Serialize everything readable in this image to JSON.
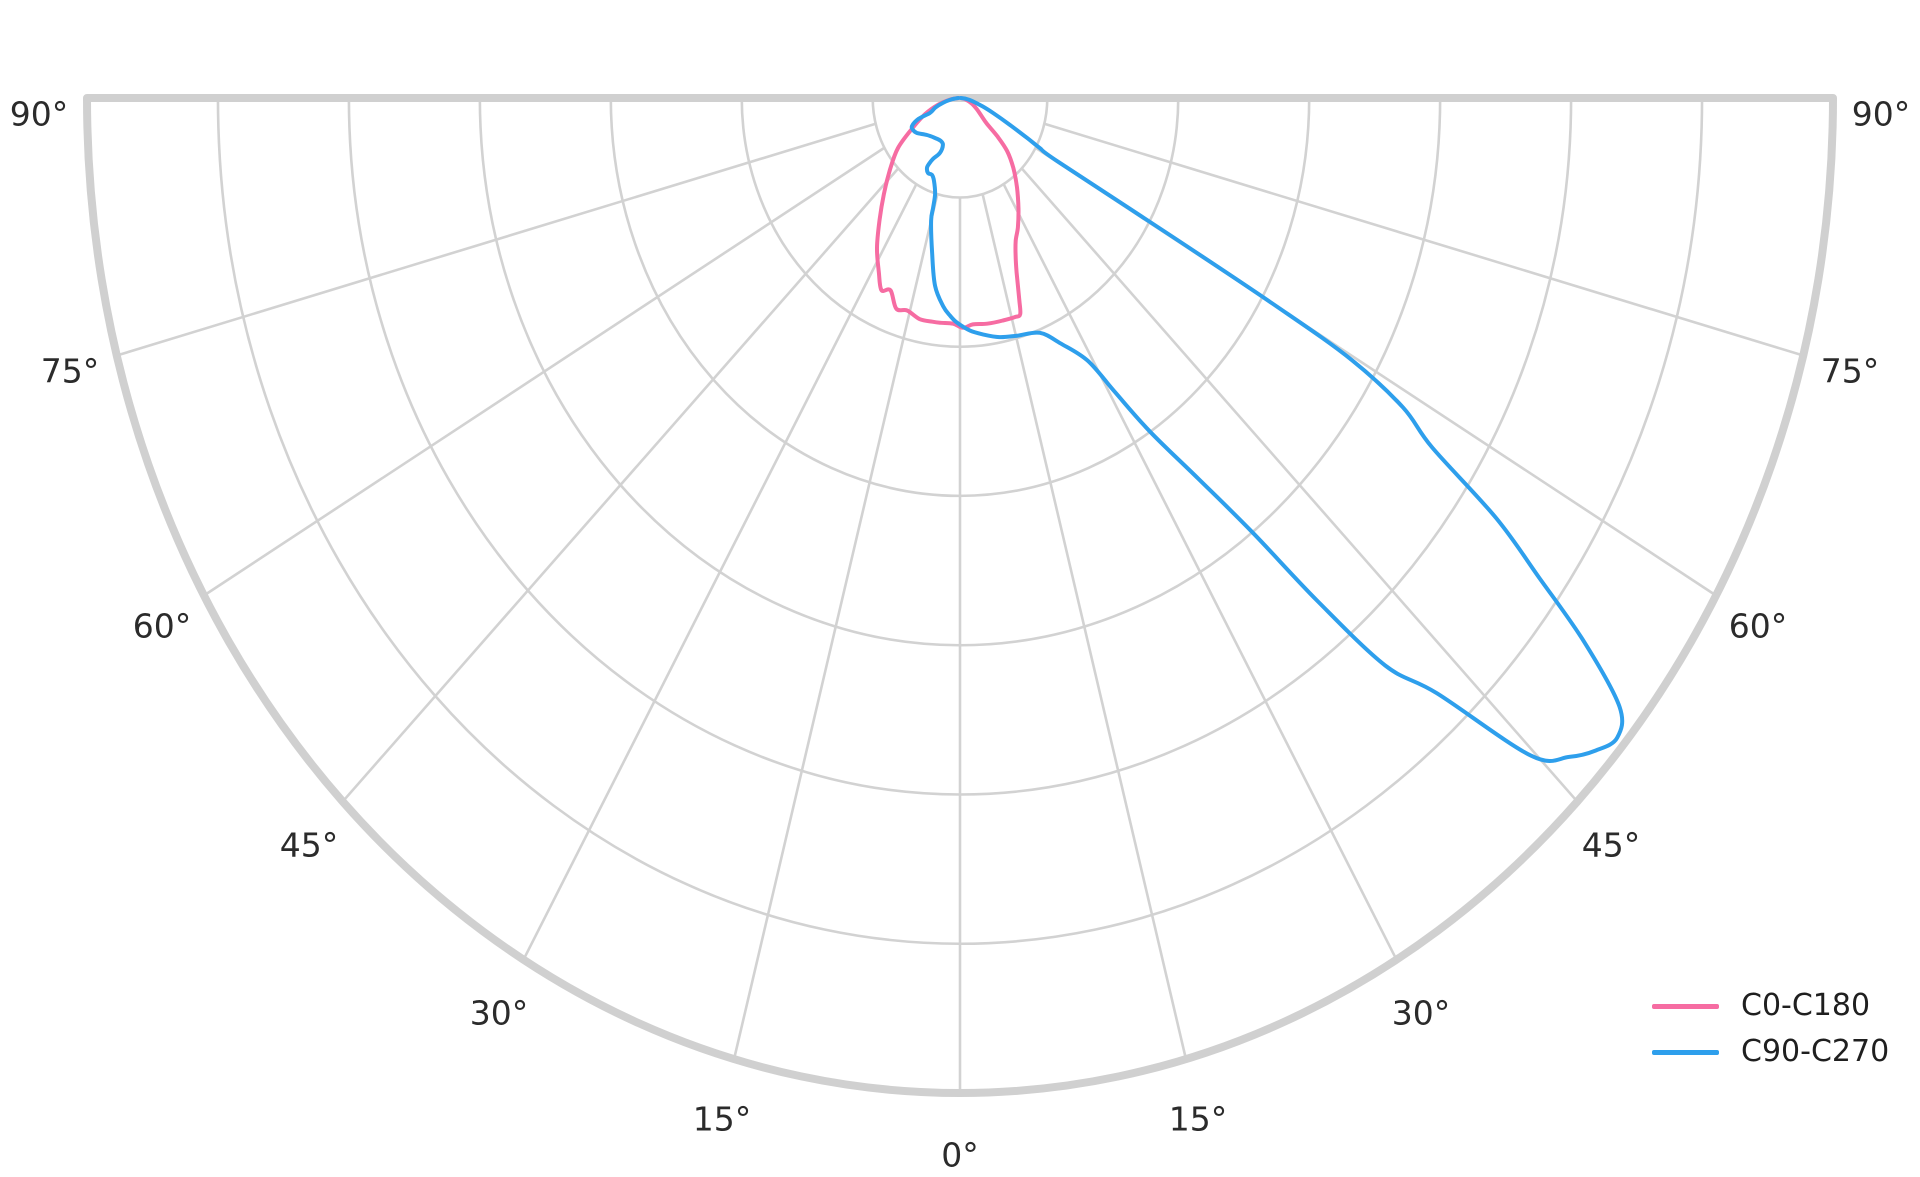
{
  "chart_data": {
    "type": "polar_photometric",
    "title": "",
    "subtitle": "",
    "orientation": "lower-hemisphere, gamma measured from nadir (0° straight down), labels mirrored left/right",
    "angle_ticks_deg": [
      -90,
      -75,
      -60,
      -45,
      -30,
      -15,
      0,
      15,
      30,
      45,
      60,
      75,
      90
    ],
    "angle_tick_labels": [
      "90°",
      "75°",
      "60°",
      "45°",
      "30°",
      "15°",
      "0°",
      "15°",
      "30°",
      "45°",
      "60°",
      "75°",
      "90°"
    ],
    "ring_radii_norm": [
      0.1,
      0.25,
      0.4,
      0.55,
      0.7,
      0.85,
      1.0
    ],
    "spoke_angles_deg": [
      -75,
      -60,
      -45,
      -30,
      -15,
      0,
      15,
      30,
      45,
      60,
      75
    ],
    "spoke_inner_radius_norm": 0.1,
    "grid_on": true,
    "grid_color": "#d2d2d2",
    "outer_border_color": "#d0d0d0",
    "label_color": "#2b2b2b",
    "background_color": "#ffffff",
    "legend": {
      "position": "bottom-right",
      "items": [
        {
          "label": "C0-C180",
          "color": "#f66ca2"
        },
        {
          "label": "C90-C270",
          "color": "#2e9fec"
        }
      ]
    },
    "series": [
      {
        "name": "C0-C180",
        "color": "#f66ca2",
        "points_gamma_r": [
          [
            -89.5,
            0.002
          ],
          [
            -82,
            0.012
          ],
          [
            -75,
            0.026
          ],
          [
            -68,
            0.043
          ],
          [
            -61,
            0.062
          ],
          [
            -54.7,
            0.087
          ],
          [
            -48,
            0.108
          ],
          [
            -42.1,
            0.13
          ],
          [
            -37,
            0.153
          ],
          [
            -32.3,
            0.178
          ],
          [
            -28,
            0.198
          ],
          [
            -25,
            0.213
          ],
          [
            -22.4,
            0.209
          ],
          [
            -19,
            0.224
          ],
          [
            -15.8,
            0.222
          ],
          [
            -11.7,
            0.227
          ],
          [
            -8,
            0.227
          ],
          [
            -5.8,
            0.227
          ],
          [
            -2,
            0.227
          ],
          [
            0.85,
            0.231
          ],
          [
            3.7,
            0.228
          ],
          [
            7.8,
            0.229
          ],
          [
            12.4,
            0.229
          ],
          [
            16,
            0.229
          ],
          [
            17.6,
            0.228
          ],
          [
            18.5,
            0.214
          ],
          [
            20.3,
            0.187
          ],
          [
            22,
            0.17
          ],
          [
            24,
            0.157
          ],
          [
            27,
            0.146
          ],
          [
            31,
            0.13
          ],
          [
            36,
            0.111
          ],
          [
            41,
            0.093
          ],
          [
            45.3,
            0.076
          ],
          [
            48,
            0.058
          ],
          [
            50,
            0.04
          ],
          [
            54,
            0.03
          ],
          [
            60,
            0.022
          ],
          [
            68,
            0.014
          ],
          [
            78,
            0.006
          ],
          [
            89.5,
            0.001
          ]
        ]
      },
      {
        "name": "C90-C270",
        "color": "#2e9fec",
        "points_gamma_r": [
          [
            -89.5,
            0.002
          ],
          [
            -82,
            0.01
          ],
          [
            -76,
            0.02
          ],
          [
            -71,
            0.03
          ],
          [
            -66.5,
            0.0375
          ],
          [
            -66.2,
            0.052
          ],
          [
            -62.9,
            0.0618
          ],
          [
            -59.2,
            0.0627
          ],
          [
            -54.5,
            0.0605
          ],
          [
            -45.5,
            0.053
          ],
          [
            -35.4,
            0.0493
          ],
          [
            -26.8,
            0.0484
          ],
          [
            -22.5,
            0.0511
          ],
          [
            -22.6,
            0.0598
          ],
          [
            -26.8,
            0.0686
          ],
          [
            -28.2,
            0.0752
          ],
          [
            -28.3,
            0.0798
          ],
          [
            -25.9,
            0.0838
          ],
          [
            -22.5,
            0.0837
          ],
          [
            -19.7,
            0.0885
          ],
          [
            -16.5,
            0.1006
          ],
          [
            -15.6,
            0.1146
          ],
          [
            -15.0,
            0.1279
          ],
          [
            -11.5,
            0.16
          ],
          [
            -8.6,
            0.191
          ],
          [
            -5.3,
            0.21
          ],
          [
            -3.0,
            0.219
          ],
          [
            -0.8,
            0.226
          ],
          [
            2.8,
            0.234
          ],
          [
            6.3,
            0.239
          ],
          [
            10.6,
            0.2445
          ],
          [
            15.3,
            0.2477
          ],
          [
            21.2,
            0.2531
          ],
          [
            25,
            0.272
          ],
          [
            29,
            0.302
          ],
          [
            31,
            0.345
          ],
          [
            33,
            0.4
          ],
          [
            35.5,
            0.47
          ],
          [
            37.5,
            0.55
          ],
          [
            39,
            0.65
          ],
          [
            40.5,
            0.75
          ],
          [
            42.4,
            0.81
          ],
          [
            44.7,
            0.93
          ],
          [
            46.5,
            0.962
          ],
          [
            48,
            0.98
          ],
          [
            49.5,
            0.99
          ],
          [
            51,
            0.972
          ],
          [
            52.6,
            0.9
          ],
          [
            54,
            0.82
          ],
          [
            55.5,
            0.745
          ],
          [
            57,
            0.645
          ],
          [
            58.5,
            0.595
          ],
          [
            59.6,
            0.52
          ],
          [
            60,
            0.42
          ],
          [
            60.2,
            0.28
          ],
          [
            60.3,
            0.13
          ],
          [
            61.2,
            0.104
          ],
          [
            62.4,
            0.087
          ],
          [
            65,
            0.061
          ],
          [
            68.3,
            0.041
          ],
          [
            72,
            0.027
          ],
          [
            78,
            0.014
          ],
          [
            84,
            0.006
          ],
          [
            89.5,
            0.001
          ]
        ]
      }
    ]
  }
}
